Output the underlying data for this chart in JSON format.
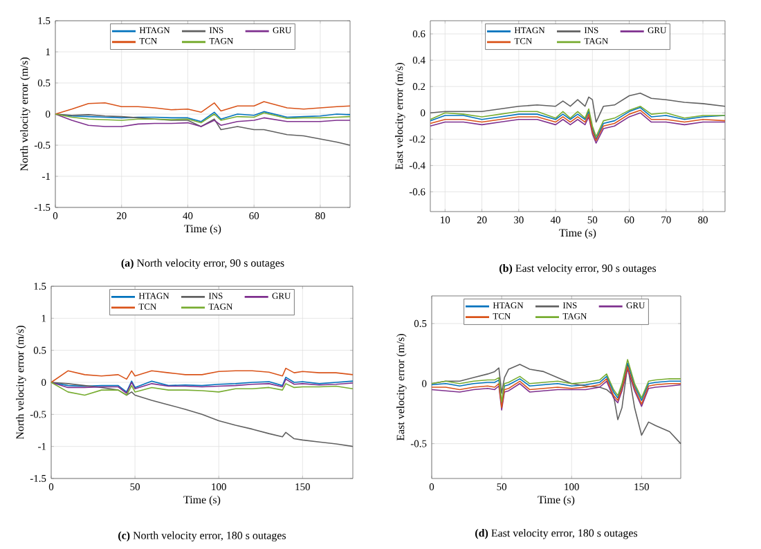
{
  "chart_data": [
    {
      "type": "line",
      "xlabel": "Time (s)",
      "ylabel": "North velocity error (m/s)",
      "annotations": [
        "**(a)** North velocity error, 90 s outages"
      ],
      "xlim": [
        0,
        89
      ],
      "ylim": [
        -1.5,
        1.5
      ],
      "xticks": [
        0,
        20,
        40,
        60,
        80
      ],
      "yticks": [
        -1.5,
        -1,
        -0.5,
        0,
        0.5,
        1,
        1.5
      ],
      "grid": true,
      "legend": "top",
      "marker": "none",
      "line_style": "solid",
      "x": [
        0,
        5,
        10,
        15,
        20,
        25,
        30,
        35,
        40,
        44,
        48,
        50,
        55,
        60,
        63,
        70,
        75,
        80,
        85,
        89
      ],
      "series": [
        {
          "name": "HTAGN",
          "color": "#0072bd",
          "values": [
            0,
            -0.03,
            -0.04,
            -0.05,
            -0.06,
            -0.05,
            -0.05,
            -0.06,
            -0.06,
            -0.12,
            0.03,
            -0.08,
            0,
            -0.02,
            0.04,
            -0.05,
            -0.04,
            -0.03,
            0,
            -0.01
          ]
        },
        {
          "name": "INS",
          "color": "#606060",
          "values": [
            0,
            -0.02,
            -0.01,
            -0.03,
            -0.04,
            -0.06,
            -0.08,
            -0.1,
            -0.1,
            -0.2,
            -0.08,
            -0.25,
            -0.2,
            -0.25,
            -0.25,
            -0.33,
            -0.35,
            -0.4,
            -0.45,
            -0.5
          ]
        },
        {
          "name": "GRU",
          "color": "#7e2f8e",
          "values": [
            0,
            -0.1,
            -0.18,
            -0.2,
            -0.2,
            -0.16,
            -0.15,
            -0.15,
            -0.14,
            -0.2,
            -0.1,
            -0.18,
            -0.12,
            -0.1,
            -0.06,
            -0.12,
            -0.12,
            -0.12,
            -0.1,
            -0.1
          ]
        },
        {
          "name": "TCN",
          "color": "#d95319",
          "values": [
            0,
            0.08,
            0.17,
            0.18,
            0.12,
            0.12,
            0.1,
            0.07,
            0.08,
            0.03,
            0.18,
            0.05,
            0.13,
            0.13,
            0.2,
            0.1,
            0.08,
            0.1,
            0.12,
            0.13
          ]
        },
        {
          "name": "TAGN",
          "color": "#77ac30",
          "values": [
            0,
            -0.05,
            -0.08,
            -0.09,
            -0.1,
            -0.08,
            -0.08,
            -0.09,
            -0.08,
            -0.14,
            0,
            -0.1,
            -0.04,
            -0.05,
            0.02,
            -0.07,
            -0.06,
            -0.06,
            -0.05,
            -0.04
          ]
        }
      ]
    },
    {
      "type": "line",
      "xlabel": "Time (s)",
      "ylabel": "East velocity error (m/s)",
      "annotations": [
        "**(b)** East velocity error, 90 s outages"
      ],
      "xlim": [
        6,
        86
      ],
      "ylim": [
        -0.75,
        0.7
      ],
      "xticks": [
        10,
        20,
        30,
        40,
        50,
        60,
        70,
        80
      ],
      "yticks": [
        -0.6,
        -0.4,
        -0.2,
        0,
        0.2,
        0.4,
        0.6
      ],
      "grid": true,
      "legend": "top",
      "marker": "none",
      "line_style": "solid",
      "x": [
        6,
        10,
        15,
        20,
        25,
        30,
        35,
        40,
        42,
        44,
        46,
        48,
        49,
        50,
        51,
        53,
        56,
        60,
        63,
        66,
        70,
        75,
        80,
        86
      ],
      "series": [
        {
          "name": "HTAGN",
          "color": "#0072bd",
          "values": [
            -0.06,
            -0.02,
            -0.02,
            -0.05,
            -0.03,
            -0.01,
            -0.01,
            -0.05,
            -0.01,
            -0.05,
            -0.01,
            -0.05,
            0.01,
            -0.12,
            -0.2,
            -0.08,
            -0.06,
            0.01,
            0.04,
            -0.03,
            -0.02,
            -0.05,
            -0.03,
            -0.02
          ]
        },
        {
          "name": "INS",
          "color": "#606060",
          "values": [
            0,
            0.01,
            0.01,
            0.01,
            0.03,
            0.05,
            0.06,
            0.05,
            0.09,
            0.05,
            0.1,
            0.05,
            0.12,
            0.1,
            -0.07,
            0.05,
            0.06,
            0.13,
            0.15,
            0.11,
            0.1,
            0.08,
            0.07,
            0.05
          ]
        },
        {
          "name": "GRU",
          "color": "#7e2f8e",
          "values": [
            -0.1,
            -0.07,
            -0.07,
            -0.09,
            -0.07,
            -0.05,
            -0.05,
            -0.09,
            -0.05,
            -0.09,
            -0.05,
            -0.09,
            -0.03,
            -0.16,
            -0.23,
            -0.12,
            -0.1,
            -0.03,
            0,
            -0.07,
            -0.07,
            -0.09,
            -0.07,
            -0.07
          ]
        },
        {
          "name": "TCN",
          "color": "#d95319",
          "values": [
            -0.08,
            -0.05,
            -0.05,
            -0.07,
            -0.05,
            -0.03,
            -0.03,
            -0.07,
            -0.03,
            -0.07,
            -0.03,
            -0.07,
            -0.01,
            -0.14,
            -0.21,
            -0.1,
            -0.08,
            -0.01,
            0.02,
            -0.05,
            -0.05,
            -0.07,
            -0.05,
            -0.06
          ]
        },
        {
          "name": "TAGN",
          "color": "#77ac30",
          "values": [
            -0.05,
            0,
            -0.01,
            -0.03,
            -0.01,
            0.01,
            0.01,
            -0.04,
            0.01,
            -0.04,
            0.01,
            -0.04,
            0.03,
            -0.1,
            -0.18,
            -0.06,
            -0.04,
            0.02,
            0.05,
            -0.01,
            0,
            -0.04,
            -0.02,
            -0.02
          ]
        }
      ]
    },
    {
      "type": "line",
      "xlabel": "Time (s)",
      "ylabel": "North velocity error (m/s)",
      "annotations": [
        "**(c)** North velocity error, 180 s outages"
      ],
      "xlim": [
        0,
        180
      ],
      "ylim": [
        -1.5,
        1.5
      ],
      "xticks": [
        0,
        50,
        100,
        150
      ],
      "yticks": [
        -1.5,
        -1,
        -0.5,
        0,
        0.5,
        1,
        1.5
      ],
      "grid": true,
      "legend": "top",
      "marker": "none",
      "line_style": "solid",
      "x": [
        0,
        10,
        20,
        30,
        40,
        45,
        48,
        50,
        60,
        70,
        80,
        90,
        100,
        110,
        120,
        130,
        138,
        140,
        145,
        150,
        160,
        170,
        180
      ],
      "series": [
        {
          "name": "HTAGN",
          "color": "#0072bd",
          "values": [
            0,
            -0.05,
            -0.06,
            -0.05,
            -0.05,
            -0.15,
            0.02,
            -0.08,
            0.02,
            -0.05,
            -0.04,
            -0.05,
            -0.03,
            -0.02,
            0,
            0.01,
            -0.05,
            0.08,
            0,
            0.01,
            -0.02,
            0,
            0.02
          ]
        },
        {
          "name": "INS",
          "color": "#606060",
          "values": [
            0,
            -0.02,
            -0.05,
            -0.08,
            -0.12,
            -0.2,
            -0.15,
            -0.2,
            -0.28,
            -0.35,
            -0.42,
            -0.5,
            -0.6,
            -0.67,
            -0.73,
            -0.8,
            -0.85,
            -0.78,
            -0.88,
            -0.9,
            -0.93,
            -0.96,
            -1.0
          ]
        },
        {
          "name": "GRU",
          "color": "#7e2f8e",
          "values": [
            0,
            -0.08,
            -0.08,
            -0.07,
            -0.07,
            -0.17,
            0,
            -0.1,
            -0.02,
            -0.06,
            -0.06,
            -0.07,
            -0.06,
            -0.05,
            -0.03,
            -0.02,
            -0.07,
            0.05,
            -0.03,
            -0.02,
            -0.04,
            -0.03,
            -0.01
          ]
        },
        {
          "name": "TCN",
          "color": "#d95319",
          "values": [
            0,
            0.18,
            0.12,
            0.1,
            0.12,
            0.05,
            0.18,
            0.1,
            0.18,
            0.15,
            0.12,
            0.12,
            0.17,
            0.18,
            0.18,
            0.16,
            0.1,
            0.22,
            0.15,
            0.17,
            0.15,
            0.15,
            0.12
          ]
        },
        {
          "name": "TAGN",
          "color": "#77ac30",
          "values": [
            0,
            -0.15,
            -0.2,
            -0.12,
            -0.12,
            -0.2,
            -0.05,
            -0.15,
            -0.08,
            -0.12,
            -0.12,
            -0.13,
            -0.15,
            -0.1,
            -0.1,
            -0.08,
            -0.12,
            -0.02,
            -0.08,
            -0.07,
            -0.07,
            -0.06,
            -0.1
          ]
        }
      ]
    },
    {
      "type": "line",
      "xlabel": "Time (s)",
      "ylabel": "East velocity error (m/s)",
      "annotations": [
        "**(d)** East velocity error, 180 s outages"
      ],
      "xlim": [
        0,
        178
      ],
      "ylim": [
        -0.79,
        0.73
      ],
      "xticks": [
        0,
        50,
        100,
        150
      ],
      "yticks": [
        -0.5,
        0,
        0.5
      ],
      "grid": true,
      "legend": "top",
      "marker": "none",
      "line_style": "solid",
      "x": [
        0,
        10,
        20,
        30,
        40,
        45,
        48,
        50,
        52,
        55,
        63,
        70,
        80,
        90,
        100,
        110,
        120,
        125,
        130,
        133,
        136,
        140,
        145,
        150,
        155,
        160,
        170,
        178
      ],
      "series": [
        {
          "name": "HTAGN",
          "color": "#0072bd",
          "values": [
            -0.01,
            0,
            -0.02,
            0,
            0.01,
            0.01,
            0.03,
            -0.17,
            -0.02,
            -0.01,
            0.04,
            -0.02,
            -0.01,
            0,
            -0.02,
            -0.01,
            0.01,
            0.06,
            -0.07,
            -0.12,
            -0.02,
            0.17,
            -0.02,
            -0.14,
            0,
            0.01,
            0.02,
            0.02
          ]
        },
        {
          "name": "INS",
          "color": "#606060",
          "values": [
            0,
            0.02,
            0.02,
            0.05,
            0.08,
            0.1,
            0.13,
            -0.08,
            0.05,
            0.12,
            0.16,
            0.12,
            0.1,
            0.05,
            0,
            -0.02,
            -0.03,
            -0.05,
            -0.1,
            -0.3,
            -0.2,
            0.15,
            -0.2,
            -0.43,
            -0.32,
            -0.35,
            -0.4,
            -0.5
          ]
        },
        {
          "name": "GRU",
          "color": "#7e2f8e",
          "values": [
            -0.05,
            -0.06,
            -0.07,
            -0.05,
            -0.04,
            -0.05,
            -0.02,
            -0.22,
            -0.07,
            -0.06,
            0,
            -0.07,
            -0.06,
            -0.05,
            -0.05,
            -0.05,
            -0.03,
            0.02,
            -0.12,
            -0.16,
            -0.06,
            0.12,
            -0.06,
            -0.19,
            -0.04,
            -0.03,
            -0.02,
            -0.01
          ]
        },
        {
          "name": "TCN",
          "color": "#d95319",
          "values": [
            -0.03,
            -0.03,
            -0.05,
            -0.03,
            -0.02,
            -0.03,
            0,
            -0.2,
            -0.05,
            -0.04,
            0.02,
            -0.05,
            -0.04,
            -0.03,
            -0.04,
            -0.03,
            -0.01,
            0.04,
            -0.1,
            -0.14,
            -0.04,
            0.14,
            -0.04,
            -0.17,
            -0.02,
            -0.01,
            0,
            0
          ]
        },
        {
          "name": "TAGN",
          "color": "#77ac30",
          "values": [
            0,
            0.02,
            0,
            0.02,
            0.03,
            0.03,
            0.05,
            -0.15,
            0,
            0.01,
            0.06,
            0,
            0.01,
            0.02,
            0,
            0.01,
            0.03,
            0.08,
            -0.05,
            -0.1,
            0,
            0.2,
            0,
            -0.12,
            0.02,
            0.03,
            0.04,
            0.04
          ]
        }
      ]
    }
  ]
}
